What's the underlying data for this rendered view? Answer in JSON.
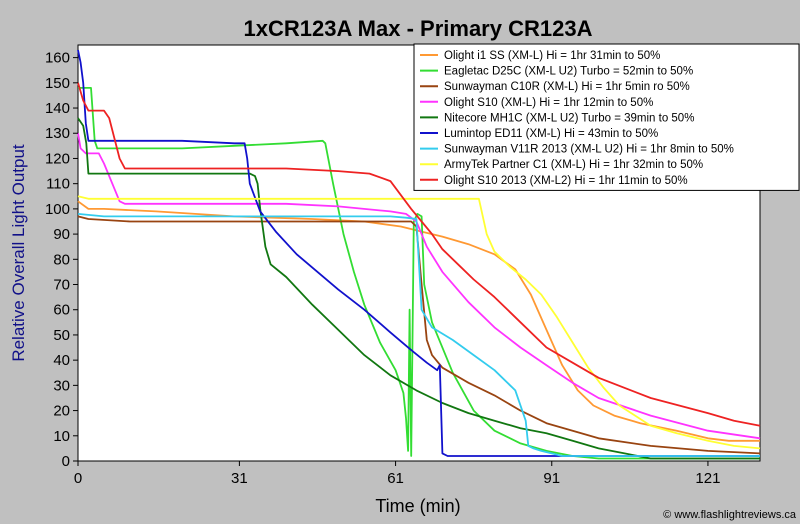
{
  "chart_data": {
    "type": "line",
    "title": "1xCR123A Max - Primary CR123A",
    "xlabel": "Time (min)",
    "ylabel": "Relative Overall Light Output",
    "xlim": [
      0,
      131
    ],
    "ylim": [
      0,
      165
    ],
    "xticks": [
      0,
      31,
      61,
      91,
      121
    ],
    "yticks": [
      0,
      10,
      20,
      30,
      40,
      50,
      60,
      70,
      80,
      90,
      100,
      110,
      120,
      130,
      140,
      150,
      160
    ],
    "grid": false,
    "legend_position": "top-right",
    "watermark": "© www.flashlightreviews.ca",
    "series": [
      {
        "name": "Olight i1 SS (XM-L) Hi = 1hr 31min to 50%",
        "color": "#ff9933",
        "points": [
          [
            0,
            103
          ],
          [
            2,
            100
          ],
          [
            5,
            100
          ],
          [
            15,
            99
          ],
          [
            30,
            97
          ],
          [
            45,
            96
          ],
          [
            55,
            95
          ],
          [
            62,
            93
          ],
          [
            66,
            91
          ],
          [
            70,
            89
          ],
          [
            75,
            86
          ],
          [
            80,
            82
          ],
          [
            84,
            76
          ],
          [
            87,
            66
          ],
          [
            90,
            52
          ],
          [
            93,
            38
          ],
          [
            96,
            28
          ],
          [
            99,
            22
          ],
          [
            103,
            18
          ],
          [
            108,
            15
          ],
          [
            115,
            12
          ],
          [
            121,
            9
          ],
          [
            125,
            8
          ],
          [
            131,
            8
          ]
        ]
      },
      {
        "name": "Eagletac D25C (XM-L U2) Turbo  = 52min to 50%",
        "color": "#33dd33",
        "points": [
          [
            0,
            148
          ],
          [
            1,
            148
          ],
          [
            1.5,
            148
          ],
          [
            2.5,
            148
          ],
          [
            3.2,
            127
          ],
          [
            3.7,
            124
          ],
          [
            5,
            124
          ],
          [
            20,
            124
          ],
          [
            30,
            125
          ],
          [
            40,
            126
          ],
          [
            47,
            127
          ],
          [
            47.5,
            126
          ],
          [
            49,
            110
          ],
          [
            51,
            90
          ],
          [
            53,
            75
          ],
          [
            55,
            62
          ],
          [
            58,
            47
          ],
          [
            61,
            36
          ],
          [
            62.5,
            27
          ],
          [
            63,
            17
          ],
          [
            63.4,
            4
          ],
          [
            63.7,
            60
          ],
          [
            64,
            2
          ],
          [
            64.5,
            95
          ],
          [
            65.2,
            98
          ],
          [
            66,
            97
          ],
          [
            66.5,
            70
          ],
          [
            68,
            55
          ],
          [
            72,
            35
          ],
          [
            76,
            20
          ],
          [
            80,
            12
          ],
          [
            85,
            7
          ],
          [
            90,
            4
          ],
          [
            95,
            2
          ],
          [
            100,
            1
          ],
          [
            131,
            1
          ]
        ]
      },
      {
        "name": "Sunwayman C10R (XM-L) Hi = 1hr 5min ro 50%",
        "color": "#994411",
        "points": [
          [
            0,
            97
          ],
          [
            2,
            96
          ],
          [
            10,
            95
          ],
          [
            30,
            95
          ],
          [
            50,
            95
          ],
          [
            62,
            95
          ],
          [
            64,
            95
          ],
          [
            65,
            93
          ],
          [
            66,
            70
          ],
          [
            67,
            48
          ],
          [
            68,
            42
          ],
          [
            70,
            37
          ],
          [
            75,
            31
          ],
          [
            80,
            26
          ],
          [
            85,
            20
          ],
          [
            90,
            15
          ],
          [
            95,
            12
          ],
          [
            100,
            9
          ],
          [
            110,
            6
          ],
          [
            121,
            4
          ],
          [
            131,
            3
          ]
        ]
      },
      {
        "name": "Olight S10 (XM-L) Hi = 1hr 12min to 50%",
        "color": "#ff33ff",
        "points": [
          [
            0,
            130
          ],
          [
            0.5,
            124
          ],
          [
            1.5,
            122
          ],
          [
            4,
            122
          ],
          [
            5,
            118
          ],
          [
            7,
            108
          ],
          [
            8,
            103
          ],
          [
            9,
            102
          ],
          [
            20,
            102
          ],
          [
            30,
            102
          ],
          [
            40,
            102
          ],
          [
            50,
            101
          ],
          [
            60,
            99
          ],
          [
            63,
            98
          ],
          [
            65,
            95
          ],
          [
            67,
            85
          ],
          [
            70,
            75
          ],
          [
            75,
            63
          ],
          [
            80,
            53
          ],
          [
            85,
            45
          ],
          [
            90,
            38
          ],
          [
            95,
            31
          ],
          [
            100,
            25
          ],
          [
            110,
            18
          ],
          [
            121,
            12
          ],
          [
            131,
            9
          ]
        ]
      },
      {
        "name": "Nitecore MH1C (XM-L U2) Turbo = 39min to 50%",
        "color": "#117711",
        "points": [
          [
            0,
            136
          ],
          [
            1,
            133
          ],
          [
            1.6,
            126
          ],
          [
            2,
            114
          ],
          [
            3,
            114
          ],
          [
            10,
            114
          ],
          [
            20,
            114
          ],
          [
            30,
            114
          ],
          [
            33,
            114
          ],
          [
            34,
            113
          ],
          [
            34.5,
            110
          ],
          [
            35,
            100
          ],
          [
            36,
            85
          ],
          [
            37,
            78
          ],
          [
            40,
            73
          ],
          [
            45,
            62
          ],
          [
            50,
            52
          ],
          [
            55,
            42
          ],
          [
            60,
            34
          ],
          [
            65,
            28
          ],
          [
            70,
            23
          ],
          [
            75,
            19
          ],
          [
            80,
            16
          ],
          [
            85,
            13
          ],
          [
            90,
            11
          ],
          [
            95,
            8
          ],
          [
            100,
            5
          ],
          [
            105,
            3
          ],
          [
            110,
            1
          ],
          [
            131,
            1
          ]
        ]
      },
      {
        "name": "Lumintop ED11 (XM-L) Hi = 43min to 50%",
        "color": "#1111cc",
        "points": [
          [
            0,
            163
          ],
          [
            0.5,
            158
          ],
          [
            1,
            150
          ],
          [
            1.5,
            134
          ],
          [
            2,
            127
          ],
          [
            4,
            127
          ],
          [
            10,
            127
          ],
          [
            20,
            127
          ],
          [
            30,
            126
          ],
          [
            32,
            126
          ],
          [
            32.5,
            120
          ],
          [
            33,
            110
          ],
          [
            35,
            99
          ],
          [
            38,
            91
          ],
          [
            42,
            82
          ],
          [
            46,
            75
          ],
          [
            50,
            68
          ],
          [
            55,
            60
          ],
          [
            60,
            51
          ],
          [
            64,
            44
          ],
          [
            67,
            39
          ],
          [
            69,
            36
          ],
          [
            69.5,
            38
          ],
          [
            70,
            3
          ],
          [
            71,
            2
          ],
          [
            131,
            2
          ]
        ]
      },
      {
        "name": "Sunwayman V11R 2013 (XM-L U2) Hi = 1hr 8min to 50%",
        "color": "#33ccee",
        "points": [
          [
            0,
            98
          ],
          [
            5,
            97
          ],
          [
            20,
            97
          ],
          [
            40,
            97
          ],
          [
            60,
            97
          ],
          [
            63,
            96.5
          ],
          [
            65,
            96
          ],
          [
            66,
            60
          ],
          [
            68,
            53
          ],
          [
            72,
            48
          ],
          [
            76,
            42
          ],
          [
            80,
            36
          ],
          [
            84,
            28
          ],
          [
            86,
            16
          ],
          [
            86.5,
            6
          ],
          [
            87.5,
            5
          ],
          [
            89,
            4
          ],
          [
            91,
            3
          ],
          [
            93,
            2
          ],
          [
            96,
            2
          ],
          [
            100,
            2
          ],
          [
            131,
            2
          ]
        ]
      },
      {
        "name": "ArmyTek Partner C1 (XM-L) Hi = 1hr 32min to 50%",
        "color": "#ffff33",
        "points": [
          [
            0,
            105
          ],
          [
            2,
            104
          ],
          [
            10,
            104
          ],
          [
            30,
            104
          ],
          [
            50,
            104
          ],
          [
            70,
            104
          ],
          [
            77,
            104
          ],
          [
            78.5,
            90
          ],
          [
            80,
            83
          ],
          [
            83,
            77
          ],
          [
            86,
            72
          ],
          [
            89,
            66
          ],
          [
            92,
            57
          ],
          [
            95,
            47
          ],
          [
            98,
            37
          ],
          [
            101,
            29
          ],
          [
            104,
            22
          ],
          [
            107,
            18
          ],
          [
            110,
            14
          ],
          [
            115,
            11
          ],
          [
            121,
            8
          ],
          [
            126,
            6
          ],
          [
            131,
            5
          ]
        ]
      },
      {
        "name": "Olight S10 2013 (XM-L2) Hi = 1hr 11min to 50%",
        "color": "#ee2222",
        "points": [
          [
            0,
            150
          ],
          [
            1,
            143
          ],
          [
            2,
            139
          ],
          [
            3,
            139
          ],
          [
            5,
            139
          ],
          [
            6,
            136
          ],
          [
            8,
            120
          ],
          [
            9,
            116
          ],
          [
            10,
            116
          ],
          [
            20,
            116
          ],
          [
            30,
            116
          ],
          [
            40,
            116
          ],
          [
            50,
            115
          ],
          [
            56,
            114
          ],
          [
            60,
            111
          ],
          [
            64,
            100
          ],
          [
            66,
            95
          ],
          [
            68,
            90
          ],
          [
            70,
            84
          ],
          [
            73,
            78
          ],
          [
            76,
            72
          ],
          [
            80,
            65
          ],
          [
            85,
            55
          ],
          [
            90,
            45
          ],
          [
            95,
            39
          ],
          [
            100,
            33
          ],
          [
            110,
            25
          ],
          [
            121,
            19
          ],
          [
            126,
            16
          ],
          [
            131,
            14
          ]
        ]
      }
    ]
  }
}
